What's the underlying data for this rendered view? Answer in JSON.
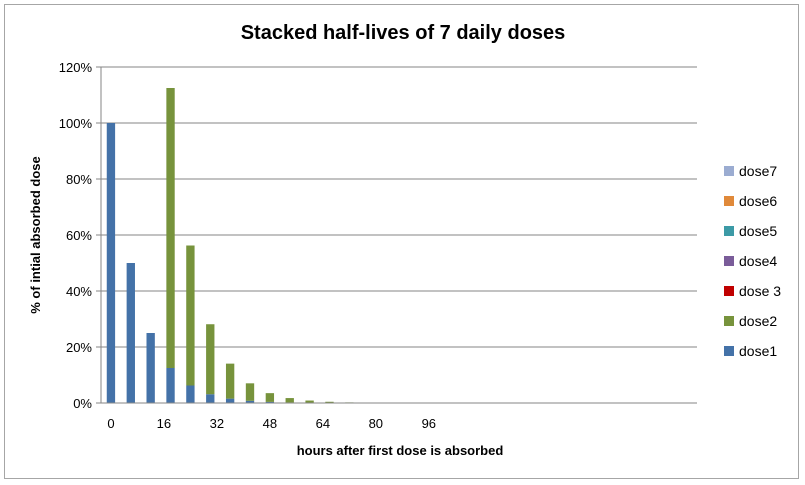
{
  "chart_data": {
    "type": "bar",
    "stacked": true,
    "title": "Stacked half-lives of 7 daily doses",
    "xlabel": "hours after first dose is absorbed",
    "ylabel": "% of intial absorbed dose",
    "ylim": [
      0,
      120
    ],
    "yticks": [
      "0%",
      "20%",
      "40%",
      "60%",
      "80%",
      "100%",
      "120%"
    ],
    "xticks": [
      {
        "value": 0,
        "label": "0"
      },
      {
        "value": 16,
        "label": "16"
      },
      {
        "value": 32,
        "label": "32"
      },
      {
        "value": 48,
        "label": "48"
      },
      {
        "value": 64,
        "label": "64"
      },
      {
        "value": 80,
        "label": "80"
      },
      {
        "value": 96,
        "label": "96"
      }
    ],
    "x": [
      0,
      6,
      12,
      18,
      24,
      30,
      36,
      42,
      48,
      54,
      60,
      66,
      72,
      78,
      84,
      90,
      96,
      102,
      108,
      114,
      120,
      126,
      132,
      138,
      144,
      150,
      156,
      162,
      168,
      174
    ],
    "grid": true,
    "legend_position": "right",
    "series": [
      {
        "name": "dose1",
        "color": "#4472a8",
        "values": [
          100,
          50,
          25,
          12.5,
          6.25,
          3.13,
          1.56,
          0.78,
          0.39,
          0.2,
          0.1,
          0.05,
          0.02,
          0.01,
          0,
          0,
          0,
          0,
          0,
          0,
          0,
          0,
          0,
          0,
          0,
          0,
          0,
          0,
          0,
          0
        ]
      },
      {
        "name": "dose2",
        "color": "#77933c",
        "values": [
          0,
          0,
          0,
          100,
          50,
          25,
          12.5,
          6.25,
          3.13,
          1.56,
          0.78,
          0.39,
          0.2,
          0.1,
          0.05,
          0.02,
          0.01,
          0,
          0,
          0,
          0,
          0,
          0,
          0,
          0,
          0,
          0,
          0,
          0,
          0
        ]
      },
      {
        "name": "dose 3",
        "color": "#c00000",
        "values": [
          0,
          0,
          0,
          0,
          0,
          0,
          0,
          0,
          0,
          0,
          0,
          0,
          0,
          0,
          0,
          0,
          0,
          0,
          0,
          0,
          0,
          0,
          0,
          0,
          0,
          0,
          0,
          0,
          0,
          0
        ]
      },
      {
        "name": "dose4",
        "color": "#7a5c99",
        "values": [
          0,
          0,
          0,
          0,
          0,
          0,
          0,
          0,
          0,
          0,
          0,
          0,
          0,
          0,
          0,
          0,
          0,
          0,
          0,
          0,
          0,
          0,
          0,
          0,
          0,
          0,
          0,
          0,
          0,
          0
        ]
      },
      {
        "name": "dose5",
        "color": "#3c9aa6",
        "values": [
          0,
          0,
          0,
          0,
          0,
          0,
          0,
          0,
          0,
          0,
          0,
          0,
          0,
          0,
          0,
          0,
          0,
          0,
          0,
          0,
          0,
          0,
          0,
          0,
          0,
          0,
          0,
          0,
          0,
          0
        ]
      },
      {
        "name": "dose6",
        "color": "#e0893a",
        "values": [
          0,
          0,
          0,
          0,
          0,
          0,
          0,
          0,
          0,
          0,
          0,
          0,
          0,
          0,
          0,
          0,
          0,
          0,
          0,
          0,
          0,
          0,
          0,
          0,
          0,
          0,
          0,
          0,
          0,
          0
        ]
      },
      {
        "name": "dose7",
        "color": "#9bacd1",
        "values": [
          0,
          0,
          0,
          0,
          0,
          0,
          0,
          0,
          0,
          0,
          0,
          0,
          0,
          0,
          0,
          0,
          0,
          0,
          0,
          0,
          0,
          0,
          0,
          0,
          0,
          0,
          0,
          0,
          0,
          0
        ]
      }
    ]
  }
}
